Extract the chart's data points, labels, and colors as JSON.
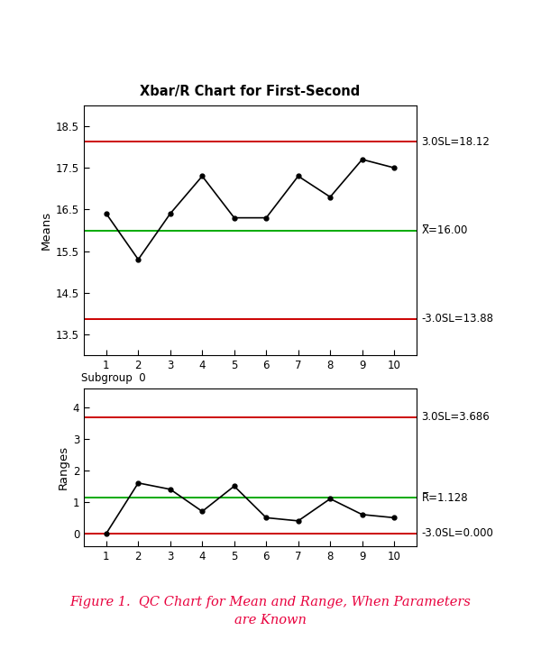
{
  "title": "Xbar/R Chart for First-Second",
  "caption_line1": "Figure 1.  QC Chart for Mean and Range, When Parameters",
  "caption_line2": "are Known",
  "caption_color": "#e8003d",
  "subgroups": [
    1,
    2,
    3,
    4,
    5,
    6,
    7,
    8,
    9,
    10
  ],
  "means_data": [
    16.4,
    15.3,
    16.4,
    17.3,
    16.3,
    16.3,
    17.3,
    16.8,
    17.7,
    17.5
  ],
  "means_ucl": 18.12,
  "means_cl": 16.0,
  "means_lcl": 13.88,
  "means_ylim": [
    13.0,
    19.0
  ],
  "means_yticks": [
    13.5,
    14.5,
    15.5,
    16.5,
    17.5,
    18.5
  ],
  "means_ylabel": "Means",
  "means_ucl_label": "3.0SL=18.12",
  "means_cl_label": "X̅=16.00",
  "means_lcl_label": "-3.0SL=13.88",
  "ranges_data": [
    0.0,
    1.6,
    1.4,
    0.7,
    1.5,
    0.5,
    0.4,
    1.1,
    0.6,
    0.5
  ],
  "ranges_ucl": 3.686,
  "ranges_cl": 1.128,
  "ranges_lcl": 0.0,
  "ranges_ylim": [
    -0.4,
    4.6
  ],
  "ranges_yticks": [
    0,
    1,
    2,
    3,
    4
  ],
  "ranges_ylabel": "Ranges",
  "ranges_ucl_label": "3.0SL=3.686",
  "ranges_cl_label": "R̅=1.128",
  "ranges_lcl_label": "-3.0SL=0.000",
  "ucl_color": "#cc0000",
  "cl_color": "#00aa00",
  "lcl_color": "#cc0000",
  "line_color": "#000000",
  "subgroup_label": "Subgroup",
  "background_color": "#ffffff",
  "plot_bg": "#ffffff"
}
